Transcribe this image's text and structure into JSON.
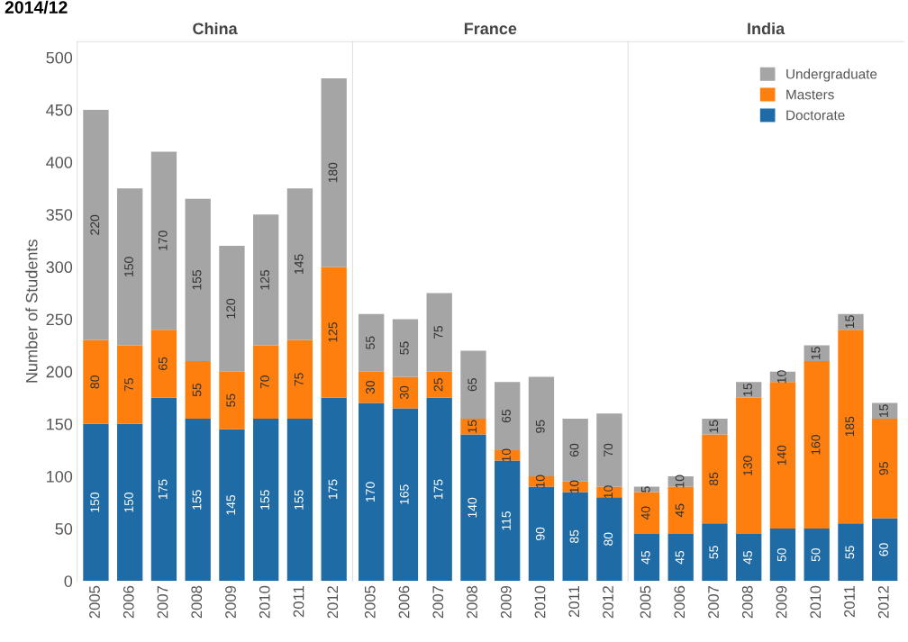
{
  "chart_data": [
    {
      "type": "bar",
      "title": "China",
      "ylabel": "Number of Students",
      "annotations": [
        "2014/12"
      ],
      "stacked": true,
      "data_labels": true,
      "grid": false,
      "categories": [
        "2005",
        "2006",
        "2007",
        "2008",
        "2009",
        "2010",
        "2011",
        "2012"
      ],
      "ylim": [
        0,
        515
      ],
      "yticks": [
        0,
        50,
        100,
        150,
        200,
        250,
        300,
        350,
        400,
        450,
        500
      ],
      "series": [
        {
          "color": "#1f6ba5",
          "values": [
            150,
            150,
            175,
            155,
            145,
            155,
            155,
            175
          ]
        },
        {
          "color": "#ff7f0e",
          "values": [
            80,
            75,
            65,
            55,
            55,
            70,
            75,
            125
          ]
        },
        {
          "color": "#a5a5a5",
          "values": [
            220,
            150,
            170,
            155,
            120,
            125,
            145,
            180
          ]
        }
      ]
    },
    {
      "type": "bar",
      "title": "France",
      "stacked": true,
      "data_labels": true,
      "grid": false,
      "tick_labels": "x",
      "categories": [
        "2005",
        "2006",
        "2007",
        "2008",
        "2009",
        "2010",
        "2011",
        "2012"
      ],
      "ylim": [
        0,
        515
      ],
      "series": [
        {
          "color": "#1f6ba5",
          "values": [
            170,
            165,
            175,
            140,
            115,
            90,
            85,
            80
          ]
        },
        {
          "color": "#ff7f0e",
          "values": [
            30,
            30,
            25,
            15,
            10,
            10,
            10,
            10
          ]
        },
        {
          "color": "#a5a5a5",
          "values": [
            55,
            55,
            75,
            65,
            65,
            95,
            60,
            70
          ]
        }
      ]
    },
    {
      "type": "bar",
      "title": "India",
      "stacked": true,
      "data_labels": true,
      "grid": false,
      "tick_labels": "x",
      "legend": "top right",
      "categories": [
        "2005",
        "2006",
        "2007",
        "2008",
        "2009",
        "2010",
        "2011",
        "2012"
      ],
      "ylim": [
        0,
        515
      ],
      "series": [
        {
          "name": "Doctorate",
          "color": "#1f6ba5",
          "values": [
            45,
            45,
            55,
            45,
            50,
            50,
            55,
            60
          ]
        },
        {
          "name": "Masters",
          "color": "#ff7f0e",
          "values": [
            40,
            45,
            85,
            130,
            140,
            160,
            185,
            95
          ]
        },
        {
          "name": "Undergraduate",
          "color": "#a5a5a5",
          "values": [
            5,
            10,
            15,
            15,
            10,
            15,
            15,
            15
          ]
        }
      ]
    }
  ]
}
